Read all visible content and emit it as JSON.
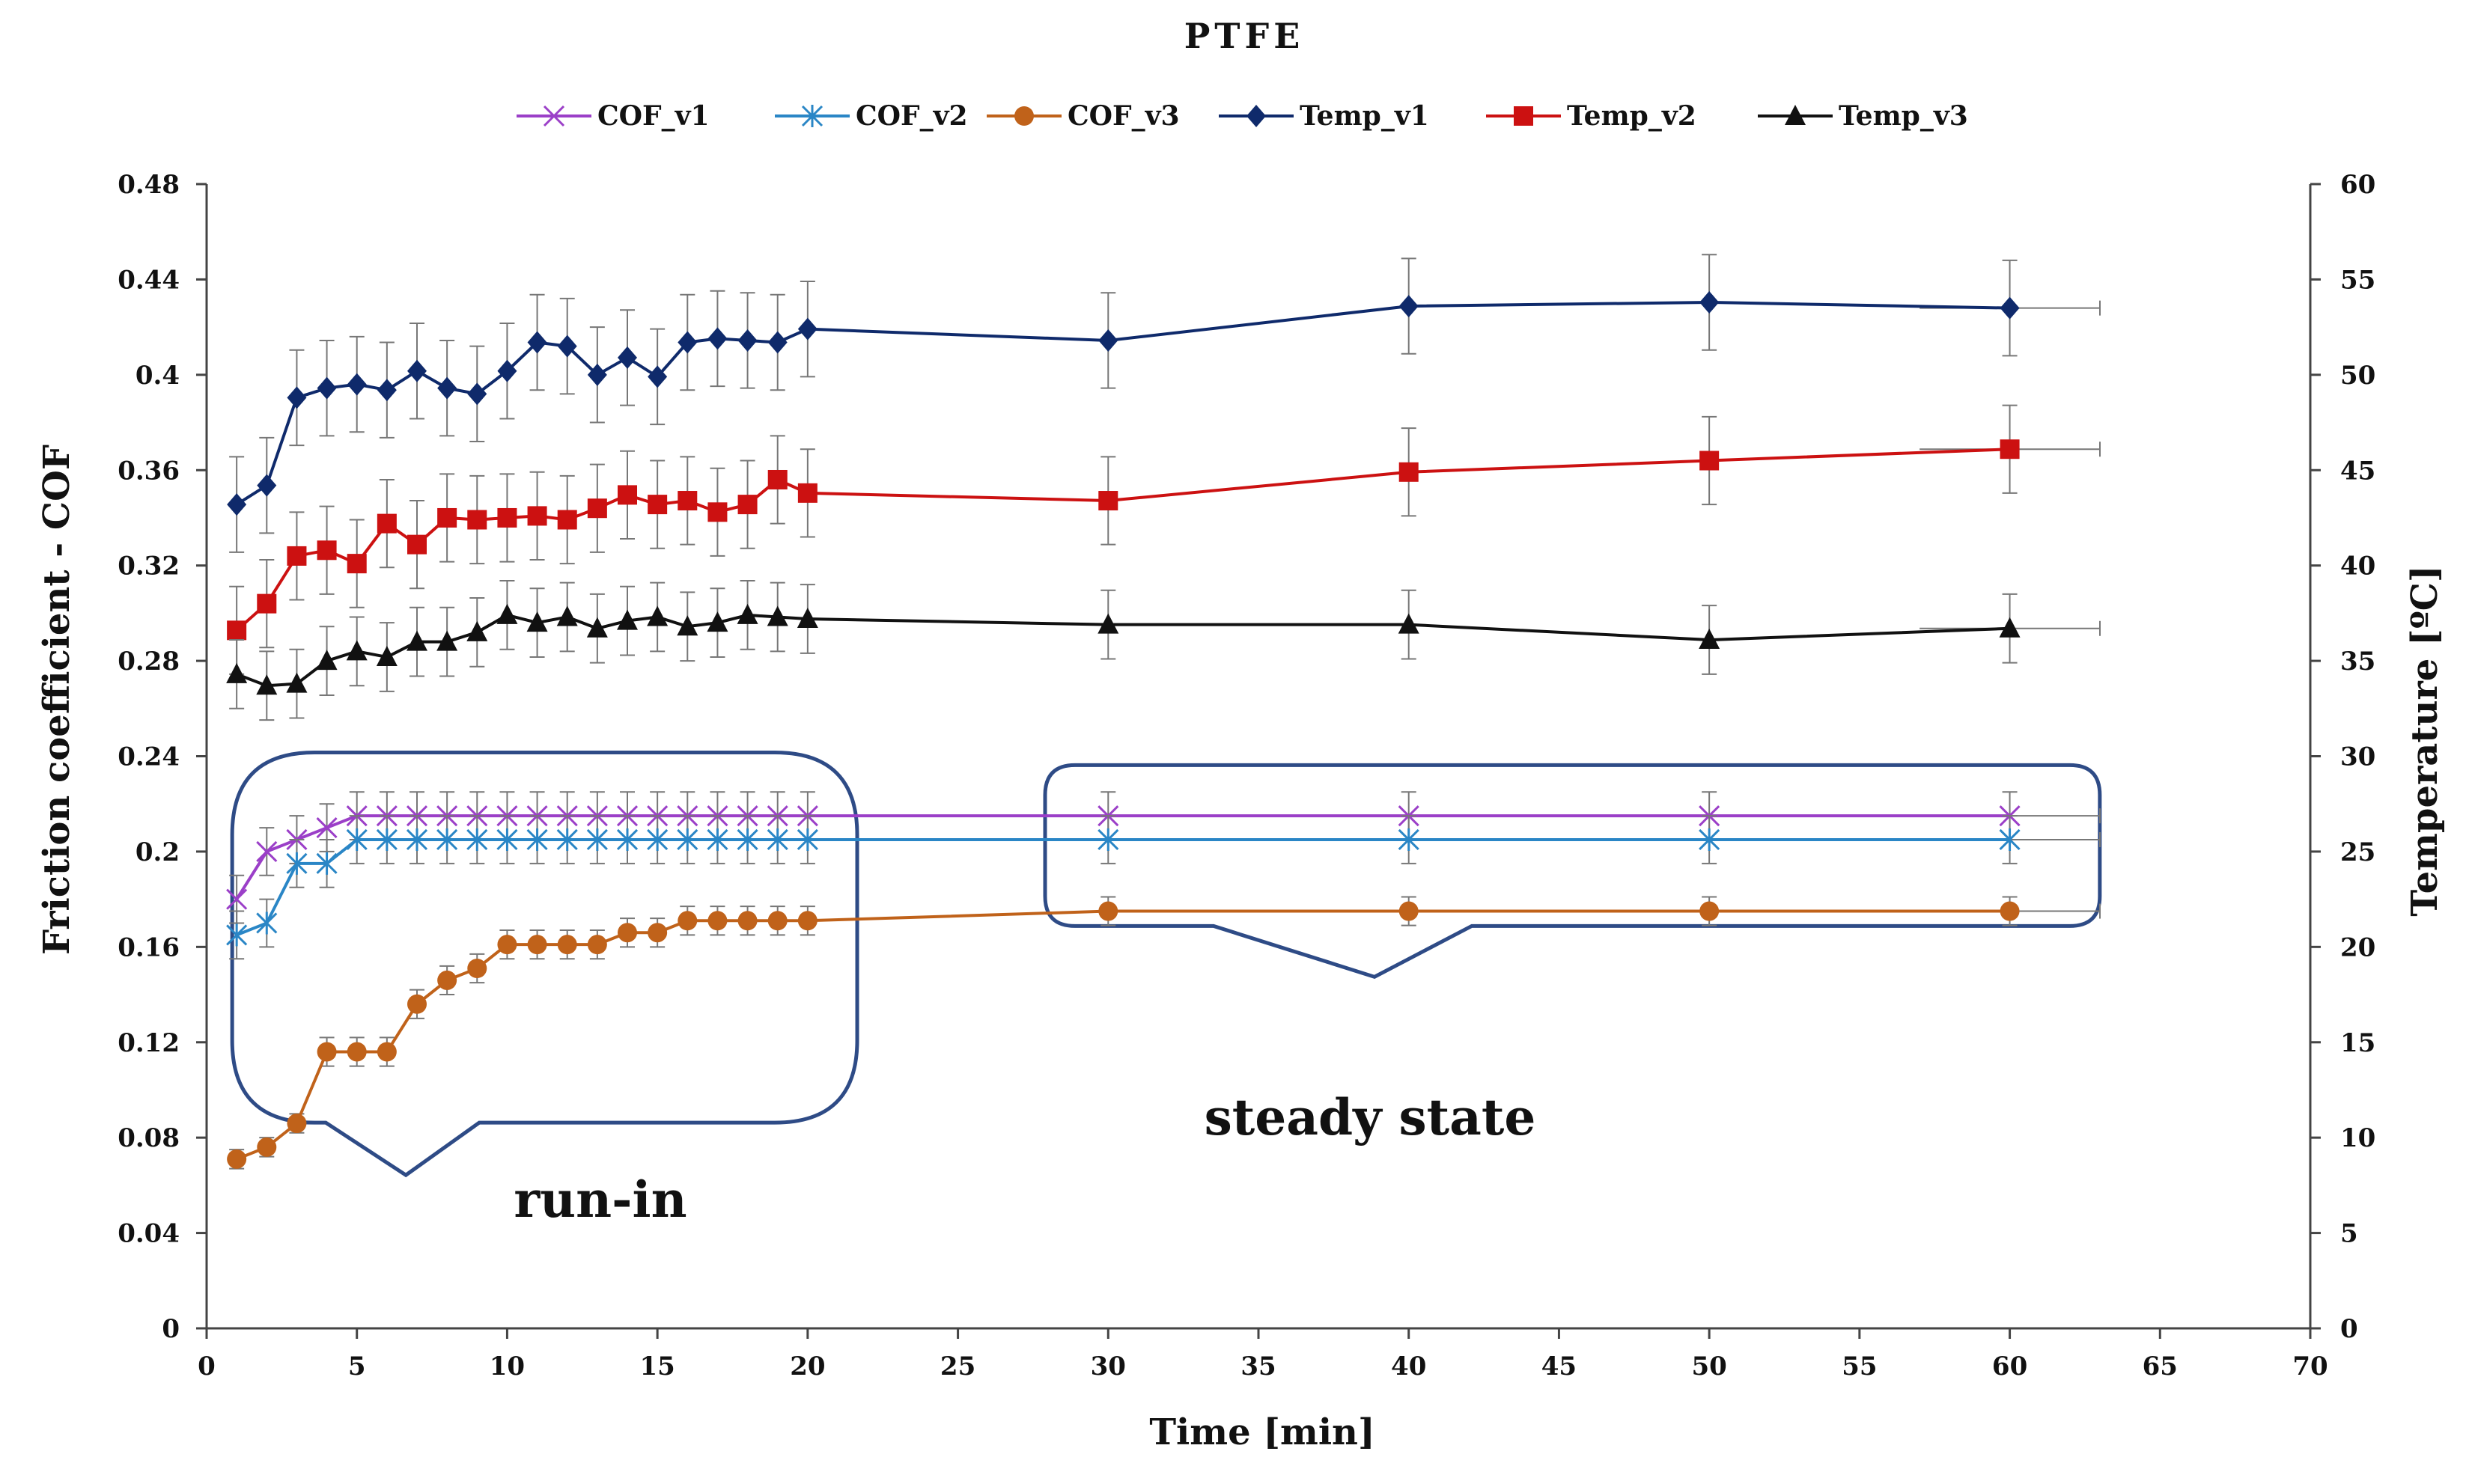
{
  "chart_data": {
    "type": "line",
    "title": "PTFE",
    "xlabel": "Time [min]",
    "ylabel": "Friction coefficient - COF",
    "y2label": "Temperature [ºC]",
    "xlim": [
      0,
      70
    ],
    "ylim": [
      0,
      0.48
    ],
    "y2lim": [
      0,
      60
    ],
    "xticks": [
      "0",
      "5",
      "10",
      "15",
      "20",
      "25",
      "30",
      "35",
      "40",
      "45",
      "50",
      "55",
      "60",
      "65",
      "70"
    ],
    "yticks": [
      "0",
      "0.04",
      "0.08",
      "0.12",
      "0.16",
      "0.2",
      "0.24",
      "0.28",
      "0.32",
      "0.36",
      "0.4",
      "0.44",
      "0.48"
    ],
    "y2ticks": [
      "0",
      "5",
      "10",
      "15",
      "20",
      "25",
      "30",
      "35",
      "40",
      "45",
      "50",
      "55",
      "60"
    ],
    "legend_position": "top",
    "x": [
      1,
      2,
      3,
      4,
      5,
      6,
      7,
      8,
      9,
      10,
      11,
      12,
      13,
      14,
      15,
      16,
      17,
      18,
      19,
      20,
      30,
      40,
      50,
      60
    ],
    "series": [
      {
        "name": "COF_v1",
        "axis": "left",
        "marker": "x",
        "color": "#9b3fc8",
        "values": [
          0.18,
          0.2,
          0.205,
          0.21,
          0.215,
          0.215,
          0.215,
          0.215,
          0.215,
          0.215,
          0.215,
          0.215,
          0.215,
          0.215,
          0.215,
          0.215,
          0.215,
          0.215,
          0.215,
          0.215,
          0.215,
          0.215,
          0.215,
          0.215
        ],
        "errors": [
          0.01,
          0.01,
          0.01,
          0.01,
          0.01,
          0.01,
          0.01,
          0.01,
          0.01,
          0.01,
          0.01,
          0.01,
          0.01,
          0.01,
          0.01,
          0.01,
          0.01,
          0.01,
          0.01,
          0.01,
          0.01,
          0.01,
          0.01,
          0.01
        ]
      },
      {
        "name": "COF_v2",
        "axis": "left",
        "marker": "star",
        "color": "#2a86c6",
        "values": [
          0.165,
          0.17,
          0.195,
          0.195,
          0.205,
          0.205,
          0.205,
          0.205,
          0.205,
          0.205,
          0.205,
          0.205,
          0.205,
          0.205,
          0.205,
          0.205,
          0.205,
          0.205,
          0.205,
          0.205,
          0.205,
          0.205,
          0.205,
          0.205
        ],
        "errors": [
          0.01,
          0.01,
          0.01,
          0.01,
          0.01,
          0.01,
          0.01,
          0.01,
          0.01,
          0.01,
          0.01,
          0.01,
          0.01,
          0.01,
          0.01,
          0.01,
          0.01,
          0.01,
          0.01,
          0.01,
          0.01,
          0.01,
          0.01,
          0.01
        ]
      },
      {
        "name": "COF_v3",
        "axis": "left",
        "marker": "circle",
        "color": "#c0621a",
        "values": [
          0.071,
          0.076,
          0.086,
          0.116,
          0.116,
          0.116,
          0.136,
          0.146,
          0.151,
          0.161,
          0.161,
          0.161,
          0.161,
          0.166,
          0.166,
          0.171,
          0.171,
          0.171,
          0.171,
          0.171,
          0.175,
          0.175,
          0.175,
          0.175
        ],
        "errors": [
          0.004,
          0.004,
          0.004,
          0.006,
          0.006,
          0.006,
          0.006,
          0.006,
          0.006,
          0.006,
          0.006,
          0.006,
          0.006,
          0.006,
          0.006,
          0.006,
          0.006,
          0.006,
          0.006,
          0.006,
          0.006,
          0.006,
          0.006,
          0.006
        ]
      },
      {
        "name": "Temp_v1",
        "axis": "right",
        "marker": "diamond",
        "color": "#0f2a6b",
        "values": [
          43.2,
          44.2,
          48.8,
          49.3,
          49.5,
          49.2,
          50.2,
          49.3,
          49,
          50.2,
          51.7,
          51.5,
          50,
          50.9,
          49.9,
          51.7,
          51.9,
          51.8,
          51.7,
          52.4,
          51.8,
          53.6,
          53.8,
          53.5
        ],
        "errors": [
          2.5,
          2.5,
          2.5,
          2.5,
          2.5,
          2.5,
          2.5,
          2.5,
          2.5,
          2.5,
          2.5,
          2.5,
          2.5,
          2.5,
          2.5,
          2.5,
          2.5,
          2.5,
          2.5,
          2.5,
          2.5,
          2.5,
          2.5,
          2.5
        ]
      },
      {
        "name": "Temp_v2",
        "axis": "right",
        "marker": "square",
        "color": "#cc1111",
        "values": [
          36.6,
          38,
          40.5,
          40.8,
          40.1,
          42.2,
          41.1,
          42.5,
          42.4,
          42.5,
          42.6,
          42.4,
          43,
          43.7,
          43.2,
          43.4,
          42.8,
          43.2,
          44.5,
          43.8,
          43.4,
          44.9,
          45.5,
          46.1
        ],
        "errors": [
          2.3,
          2.3,
          2.3,
          2.3,
          2.3,
          2.3,
          2.3,
          2.3,
          2.3,
          2.3,
          2.3,
          2.3,
          2.3,
          2.3,
          2.3,
          2.3,
          2.3,
          2.3,
          2.3,
          2.3,
          2.3,
          2.3,
          2.3,
          2.3
        ]
      },
      {
        "name": "Temp_v3",
        "axis": "right",
        "marker": "triangle",
        "color": "#111111",
        "values": [
          34.3,
          33.7,
          33.8,
          35,
          35.5,
          35.2,
          36,
          36,
          36.5,
          37.4,
          37,
          37.3,
          36.7,
          37.1,
          37.3,
          36.8,
          37,
          37.4,
          37.3,
          37.2,
          36.9,
          36.9,
          36.1,
          36.7
        ],
        "errors": [
          1.8,
          1.8,
          1.8,
          1.8,
          1.8,
          1.8,
          1.8,
          1.8,
          1.8,
          1.8,
          1.8,
          1.8,
          1.8,
          1.8,
          1.8,
          1.8,
          1.8,
          1.8,
          1.8,
          1.8,
          1.8,
          1.8,
          1.8,
          1.8
        ]
      }
    ],
    "annotations": [
      {
        "text": "run-in",
        "region_x": [
          1,
          21
        ],
        "region_y": [
          0.08,
          0.24
        ]
      },
      {
        "text": "steady state",
        "region_x": [
          28,
          62
        ],
        "region_y": [
          0.16,
          0.235
        ]
      }
    ],
    "callout_color": "#2e4b86",
    "axis_color": "#444444"
  }
}
